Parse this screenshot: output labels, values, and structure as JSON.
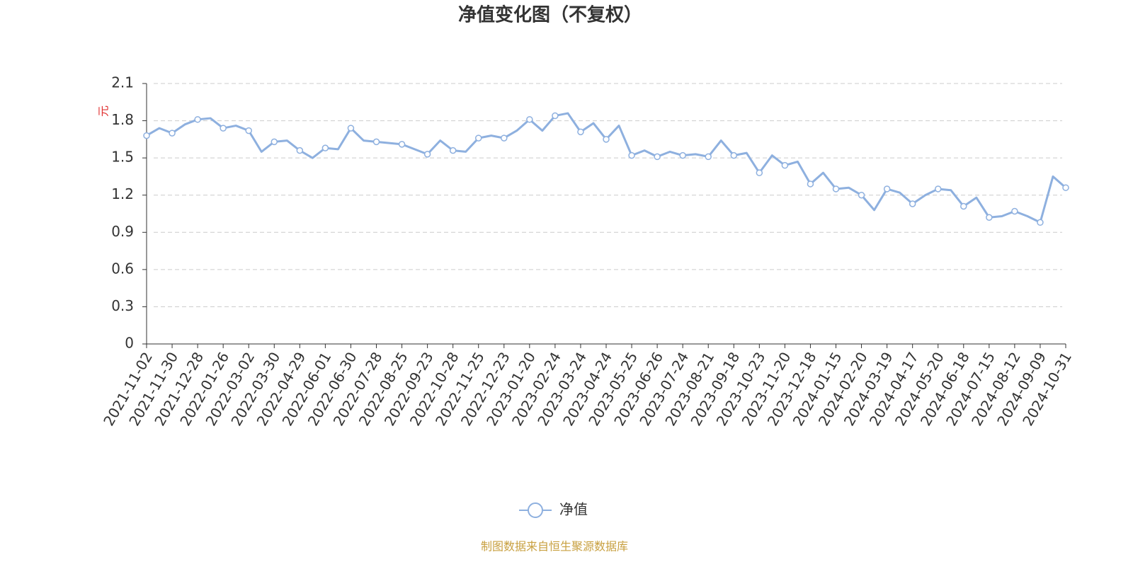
{
  "chart_data": {
    "type": "line",
    "title": "净值变化图（不复权）",
    "y_label": "元",
    "source": "制图数据来自恒生聚源数据库",
    "categories": [
      "2021-11-02",
      null,
      "2021-11-30",
      null,
      "2021-12-28",
      null,
      "2022-01-26",
      null,
      "2022-03-02",
      null,
      "2022-03-30",
      null,
      "2022-04-29",
      null,
      "2022-06-01",
      null,
      "2022-06-30",
      null,
      "2022-07-28",
      null,
      "2022-08-25",
      null,
      "2022-09-23",
      null,
      "2022-10-28",
      null,
      "2022-11-25",
      null,
      "2022-12-23",
      null,
      "2023-01-20",
      null,
      "2023-02-24",
      null,
      "2023-03-24",
      null,
      "2023-04-24",
      null,
      "2023-05-25",
      null,
      "2023-06-26",
      null,
      "2023-07-24",
      null,
      "2023-08-21",
      null,
      "2023-09-18",
      null,
      "2023-10-23",
      null,
      "2023-11-20",
      null,
      "2023-12-18",
      null,
      "2024-01-15",
      null,
      "2024-02-20",
      null,
      "2024-03-19",
      null,
      "2024-04-17",
      null,
      "2024-05-20",
      null,
      "2024-06-18",
      null,
      "2024-07-15",
      null,
      "2024-08-12",
      null,
      "2024-09-09",
      null,
      "2024-10-31"
    ],
    "series": [
      {
        "name": "净值",
        "color": "#8eb0df",
        "values": [
          1.68,
          1.74,
          1.7,
          1.77,
          1.81,
          1.82,
          1.74,
          1.76,
          1.72,
          1.55,
          1.63,
          1.64,
          1.56,
          1.5,
          1.58,
          1.57,
          1.74,
          1.64,
          1.63,
          1.62,
          1.61,
          1.57,
          1.53,
          1.64,
          1.56,
          1.55,
          1.66,
          1.68,
          1.66,
          1.72,
          1.81,
          1.72,
          1.84,
          1.86,
          1.71,
          1.78,
          1.65,
          1.76,
          1.52,
          1.56,
          1.51,
          1.55,
          1.52,
          1.53,
          1.51,
          1.64,
          1.52,
          1.54,
          1.38,
          1.52,
          1.44,
          1.47,
          1.29,
          1.38,
          1.25,
          1.26,
          1.2,
          1.08,
          1.25,
          1.22,
          1.13,
          1.2,
          1.25,
          1.24,
          1.11,
          1.18,
          1.02,
          1.03,
          1.07,
          1.03,
          0.98,
          1.35,
          1.26
        ]
      }
    ],
    "ylim": [
      0,
      2.1
    ],
    "yticks": [
      0,
      0.3,
      0.6,
      0.9,
      1.2,
      1.5,
      1.8,
      2.1
    ],
    "grid": true
  }
}
